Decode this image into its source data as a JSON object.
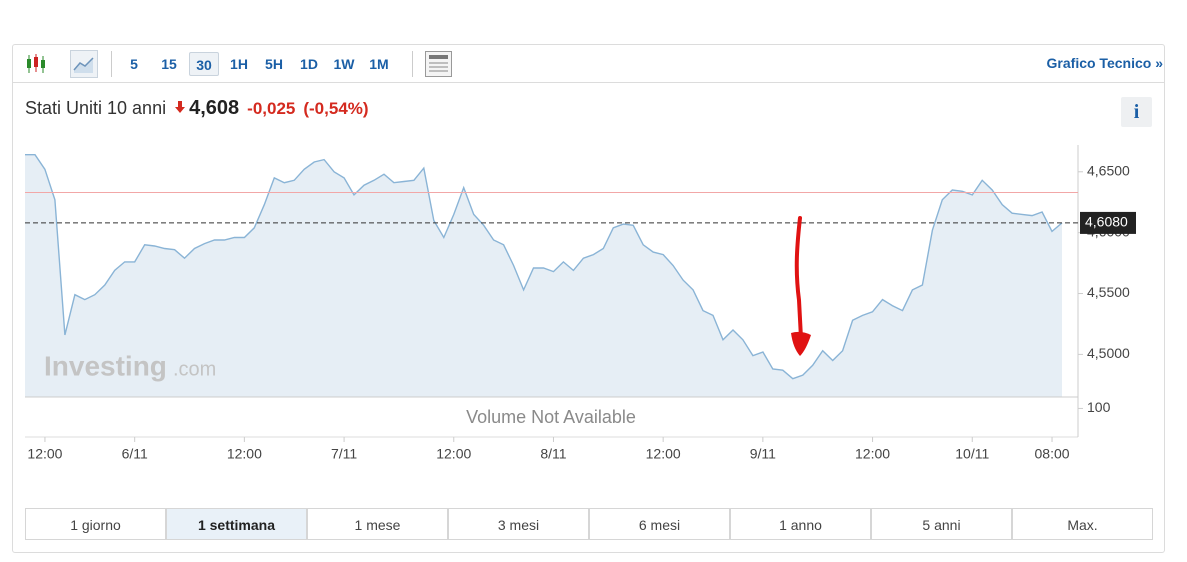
{
  "toolbar": {
    "intervals": [
      "5",
      "15",
      "30",
      "1H",
      "5H",
      "1D",
      "1W",
      "1M"
    ],
    "selected": 2,
    "link": "Grafico Tecnico",
    "link_icon": "»"
  },
  "header": {
    "name": "Stati Uniti 10 anni",
    "price": "4,608",
    "change": "-0,025",
    "change_percent": "(-0,54%)",
    "info": "i"
  },
  "watermark": {
    "brand": "Investing",
    "domain": ".com"
  },
  "chart_data": {
    "type": "area",
    "values": [
      4.664,
      4.664,
      4.652,
      4.627,
      4.516,
      4.549,
      4.545,
      4.549,
      4.557,
      4.569,
      4.576,
      4.576,
      4.59,
      4.589,
      4.587,
      4.586,
      4.579,
      4.587,
      4.591,
      4.594,
      4.594,
      4.596,
      4.596,
      4.604,
      4.623,
      4.645,
      4.641,
      4.643,
      4.652,
      4.658,
      4.66,
      4.65,
      4.645,
      4.631,
      4.639,
      4.643,
      4.648,
      4.641,
      4.642,
      4.643,
      4.653,
      4.61,
      4.596,
      4.615,
      4.637,
      4.615,
      4.606,
      4.594,
      4.59,
      4.573,
      4.553,
      4.571,
      4.571,
      4.568,
      4.576,
      4.569,
      4.579,
      4.582,
      4.587,
      4.604,
      4.607,
      4.606,
      4.59,
      4.584,
      4.582,
      4.573,
      4.561,
      4.553,
      4.536,
      4.532,
      4.512,
      4.52,
      4.512,
      4.499,
      4.502,
      4.488,
      4.487,
      4.48,
      4.483,
      4.491,
      4.503,
      4.495,
      4.503,
      4.528,
      4.532,
      4.535,
      4.545,
      4.54,
      4.536,
      4.553,
      4.557,
      4.602,
      4.627,
      4.635,
      4.634,
      4.631,
      4.643,
      4.635,
      4.623,
      4.616,
      4.615,
      4.614,
      4.617,
      4.601,
      4.608
    ],
    "color": "#8ab4d6",
    "fill": "#e3ecf4",
    "xlim": [
      0,
      104
    ],
    "xticks": [
      {
        "value": 2,
        "label": "12:00"
      },
      {
        "value": 11,
        "label": "6/11"
      },
      {
        "value": 22,
        "label": "12:00"
      },
      {
        "value": 32,
        "label": "7/11"
      },
      {
        "value": 43,
        "label": "12:00"
      },
      {
        "value": 53,
        "label": "8/11"
      },
      {
        "value": 64,
        "label": "12:00"
      },
      {
        "value": 74,
        "label": "9/11"
      },
      {
        "value": 85,
        "label": "12:00"
      },
      {
        "value": 95,
        "label": "10/11"
      },
      {
        "value": 103,
        "label": "08:00"
      }
    ],
    "ylim": [
      4.465,
      4.672
    ],
    "yticks": [
      {
        "value": 4.65,
        "label": "4,6500"
      },
      {
        "value": 4.6,
        "label": "4,6000"
      },
      {
        "value": 4.55,
        "label": "4,5500"
      },
      {
        "value": 4.5,
        "label": "4,5000"
      }
    ],
    "reference_line": {
      "value": 4.633,
      "color": "#f2a7a7"
    },
    "last_price": {
      "value": 4.608,
      "label": "4,6080"
    },
    "grid": false,
    "volume": {
      "message": "Volume Not Available",
      "ylim": [
        0,
        140
      ],
      "yticks": [
        100
      ]
    }
  },
  "ranges": {
    "items": [
      "1 giorno",
      "1 settimana",
      "1 mese",
      "3 mesi",
      "6 mesi",
      "1 anno",
      "5 anni",
      "Max."
    ],
    "selected": 1
  }
}
